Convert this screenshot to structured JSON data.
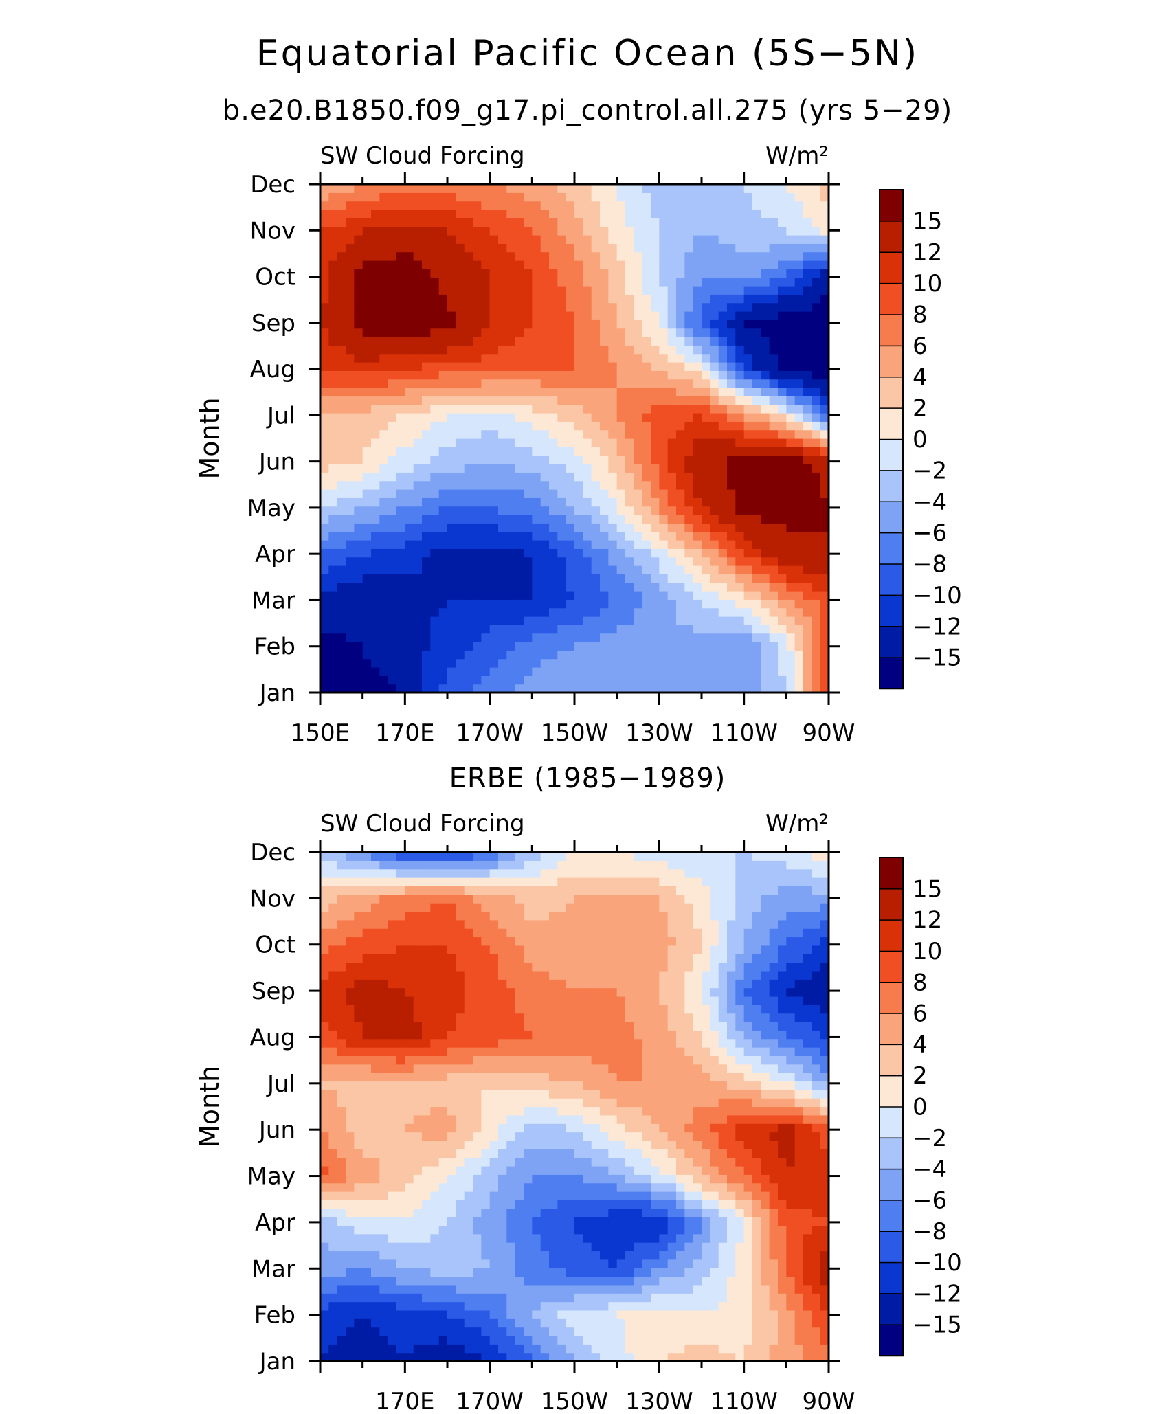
{
  "figure": {
    "title": "Equatorial Pacific Ocean (5S−5N)",
    "subtitle": "b.e20.B1850.f09_g17.pi_control.all.275 (yrs 5−29)"
  },
  "colorbar": {
    "labels": [
      "15",
      "12",
      "10",
      "8",
      "6",
      "4",
      "2",
      "0",
      "−2",
      "−4",
      "−6",
      "−8",
      "−10",
      "−12",
      "−15"
    ],
    "levels": [
      -15,
      -12,
      -10,
      -8,
      -6,
      -4,
      -2,
      0,
      2,
      4,
      6,
      8,
      10,
      12,
      15
    ],
    "colors": [
      "#000080",
      "#001ca4",
      "#0a37d0",
      "#2a5ae6",
      "#4f7ef0",
      "#7ea3f5",
      "#a9c4fa",
      "#d6e6fc",
      "#fde8d6",
      "#fbc6a5",
      "#f9a47a",
      "#f67b4d",
      "#ef4f23",
      "#d93208",
      "#b71f00",
      "#7f0000"
    ]
  },
  "chart_data": [
    {
      "type": "heatmap",
      "title": "b.e20.B1850.f09_g17.pi_control.all.275 (yrs 5−29)",
      "left_label": "SW Cloud Forcing",
      "right_label": "W/m²",
      "ylabel": "Month",
      "x_labels": [
        "150E",
        "170E",
        "170W",
        "150W",
        "130W",
        "110W",
        "90W"
      ],
      "y_labels": [
        "Jan",
        "Feb",
        "Mar",
        "Apr",
        "May",
        "Jun",
        "Jul",
        "Aug",
        "Sep",
        "Oct",
        "Nov",
        "Dec"
      ],
      "x_lon": [
        150,
        160,
        170,
        180,
        190,
        200,
        210,
        220,
        230,
        240,
        250,
        260,
        270
      ],
      "values": [
        [
          -16,
          -16,
          -15,
          -9,
          -7,
          -5,
          -4,
          -4,
          -5,
          -6,
          -5,
          -2,
          10
        ],
        [
          -16,
          -15,
          -13,
          -11,
          -9,
          -7,
          -6,
          -5,
          -4,
          -5,
          -6,
          -1,
          9
        ],
        [
          -13,
          -14,
          -13,
          -12,
          -12,
          -12,
          -10,
          -8,
          -5,
          -2,
          1,
          6,
          9
        ],
        [
          -8,
          -10,
          -11,
          -13,
          -13,
          -12,
          -9,
          -5,
          -1,
          4,
          10,
          14,
          15
        ],
        [
          -2,
          -4,
          -6,
          -8,
          -8,
          -7,
          -4,
          0,
          6,
          12,
          16,
          16,
          15
        ],
        [
          3,
          2,
          -1,
          -3,
          -4,
          -3,
          -1,
          3,
          9,
          14,
          16,
          17,
          14
        ],
        [
          4,
          3,
          2,
          0,
          -1,
          1,
          3,
          6,
          9,
          10,
          6,
          1,
          -8
        ],
        [
          10,
          11,
          10,
          9,
          9,
          8,
          8,
          6,
          4,
          1,
          -10,
          -16,
          -17
        ],
        [
          12,
          16,
          17,
          16,
          12,
          10,
          8,
          4,
          0,
          -9,
          -15,
          -17,
          -17
        ],
        [
          11,
          16,
          17,
          14,
          12,
          10,
          7,
          3,
          -2,
          -6,
          -5,
          -8,
          -14
        ],
        [
          10,
          12,
          13,
          12,
          10,
          8,
          5,
          1,
          -2,
          -4,
          -3,
          -2,
          1
        ],
        [
          4,
          6,
          7,
          7,
          6,
          5,
          3,
          0,
          -3,
          -4,
          -2,
          0,
          3
        ]
      ]
    },
    {
      "type": "heatmap",
      "title": "ERBE (1985−1989)",
      "left_label": "SW Cloud Forcing",
      "right_label": "W/m²",
      "ylabel": "Month",
      "x_labels": [
        "170E",
        "170W",
        "150W",
        "130W",
        "110W",
        "90W"
      ],
      "y_labels": [
        "Jan",
        "Feb",
        "Mar",
        "Apr",
        "May",
        "Jun",
        "Jul",
        "Aug",
        "Sep",
        "Oct",
        "Nov",
        "Dec"
      ],
      "x_lon": [
        150,
        160,
        170,
        180,
        190,
        200,
        210,
        220,
        230,
        240,
        250,
        260,
        270
      ],
      "values": [
        [
          -12,
          -13,
          -12,
          -14,
          -12,
          -8,
          -4,
          -1,
          2,
          3,
          2,
          5,
          7
        ],
        [
          -11,
          -12,
          -11,
          -10,
          -8,
          -4,
          -1,
          0,
          1,
          0,
          1,
          5,
          10
        ],
        [
          -5,
          -6,
          -4,
          -3,
          -4,
          -7,
          -9,
          -10,
          -6,
          -3,
          1,
          8,
          14
        ],
        [
          -3,
          -1,
          0,
          -2,
          -5,
          -8,
          -10,
          -12,
          -12,
          -6,
          0,
          9,
          10
        ],
        [
          9,
          5,
          3,
          0,
          -3,
          -6,
          -6,
          -4,
          -1,
          4,
          8,
          12,
          11
        ],
        [
          6,
          3,
          4,
          5,
          1,
          -3,
          -2,
          1,
          4,
          7,
          11,
          13,
          9
        ],
        [
          4,
          3,
          3,
          3,
          2,
          3,
          4,
          6,
          6,
          5,
          3,
          0,
          -5
        ],
        [
          9,
          12,
          13,
          10,
          9,
          8,
          7,
          7,
          5,
          2,
          -4,
          -8,
          -10
        ],
        [
          11,
          13,
          12,
          11,
          9,
          7,
          6,
          6,
          4,
          0,
          -8,
          -12,
          -14
        ],
        [
          7,
          9,
          10,
          10,
          8,
          5,
          5,
          6,
          5,
          2,
          -4,
          -8,
          -11
        ],
        [
          3,
          5,
          7,
          8,
          5,
          3,
          4,
          4,
          4,
          1,
          -3,
          -5,
          -5
        ],
        [
          -3,
          -6,
          -10,
          -11,
          -8,
          -3,
          0,
          0,
          -1,
          -2,
          -2,
          -1,
          2
        ]
      ]
    }
  ]
}
